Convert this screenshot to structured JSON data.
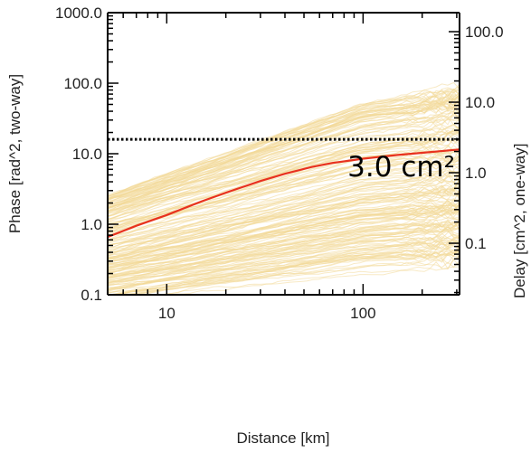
{
  "chart_data": {
    "type": "line",
    "xlabel": "Distance [km]",
    "ylabel_left": "Phase [rad^2, two-way]",
    "ylabel_right": "Delay [cm^2, one-way]",
    "xscale": "log",
    "yscale": "log",
    "xlim": [
      5,
      310
    ],
    "ylim_left": [
      0.1,
      1000
    ],
    "ylim_right": [
      0.0186,
      186
    ],
    "x_ticks": [
      {
        "value": 10,
        "label": "10"
      },
      {
        "value": 100,
        "label": "100"
      }
    ],
    "y_ticks_left": [
      {
        "value": 0.1,
        "label": "0.1"
      },
      {
        "value": 1,
        "label": "1.0"
      },
      {
        "value": 10,
        "label": "10.0"
      },
      {
        "value": 100,
        "label": "100.0"
      },
      {
        "value": 1000,
        "label": "1000.0"
      }
    ],
    "y_ticks_right": [
      {
        "value": 0.1,
        "label": "0.1"
      },
      {
        "value": 1,
        "label": "1.0"
      },
      {
        "value": 10,
        "label": "10.0"
      },
      {
        "value": 100,
        "label": "100.0"
      }
    ],
    "median_series": {
      "color": "#e8321e",
      "x": [
        5,
        7,
        10,
        15,
        20,
        30,
        40,
        55,
        70,
        100,
        150,
        200,
        310
      ],
      "y": [
        0.66,
        0.95,
        1.35,
        2.1,
        2.8,
        4.1,
        5.2,
        6.5,
        7.4,
        8.5,
        9.6,
        10.3,
        11.5
      ]
    },
    "individual_series": {
      "color": "#f2d898",
      "count": 200,
      "x": [
        5,
        310
      ],
      "y_low": [
        0.08,
        0.3
      ],
      "y_high": [
        2.6,
        80
      ],
      "note_color": "#f2d898"
    },
    "threshold_line": {
      "y": 16,
      "style": "dotted",
      "color": "#000000"
    },
    "annotation": {
      "text": "3.0 cm²",
      "x": 180,
      "y": 22
    },
    "grid": false
  }
}
